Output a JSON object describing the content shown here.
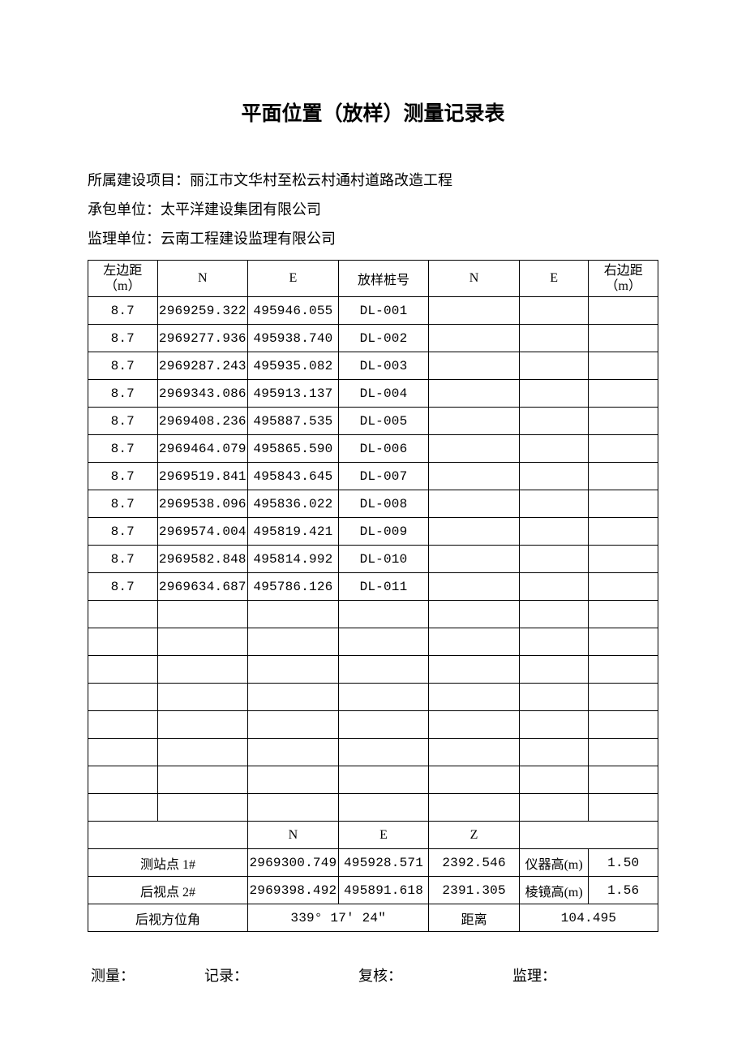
{
  "title": "平面位置（放样）测量记录表",
  "meta": {
    "project_label": "所属建设项目：",
    "project_value": "丽江市文华村至松云村通村道路改造工程",
    "contractor_label": "承包单位：",
    "contractor_value": "太平洋建设集团有限公司",
    "supervisor_label": "监理单位：",
    "supervisor_value": "云南工程建设监理有限公司"
  },
  "columns": {
    "left_dist_l1": "左边距",
    "left_dist_l2": "（m）",
    "n": "N",
    "e": "E",
    "stake": "放样桩号",
    "z": "Z",
    "right_dist_l1": "右边距",
    "right_dist_l2": "（m）"
  },
  "rows": [
    {
      "left": "8.7",
      "n": "2969259.322",
      "e": "495946.055",
      "stake": "DL-001",
      "n2": "",
      "e2": "",
      "right": ""
    },
    {
      "left": "8.7",
      "n": "2969277.936",
      "e": "495938.740",
      "stake": "DL-002",
      "n2": "",
      "e2": "",
      "right": ""
    },
    {
      "left": "8.7",
      "n": "2969287.243",
      "e": "495935.082",
      "stake": "DL-003",
      "n2": "",
      "e2": "",
      "right": ""
    },
    {
      "left": "8.7",
      "n": "2969343.086",
      "e": "495913.137",
      "stake": "DL-004",
      "n2": "",
      "e2": "",
      "right": ""
    },
    {
      "left": "8.7",
      "n": "2969408.236",
      "e": "495887.535",
      "stake": "DL-005",
      "n2": "",
      "e2": "",
      "right": ""
    },
    {
      "left": "8.7",
      "n": "2969464.079",
      "e": "495865.590",
      "stake": "DL-006",
      "n2": "",
      "e2": "",
      "right": ""
    },
    {
      "left": "8.7",
      "n": "2969519.841",
      "e": "495843.645",
      "stake": "DL-007",
      "n2": "",
      "e2": "",
      "right": ""
    },
    {
      "left": "8.7",
      "n": "2969538.096",
      "e": "495836.022",
      "stake": "DL-008",
      "n2": "",
      "e2": "",
      "right": ""
    },
    {
      "left": "8.7",
      "n": "2969574.004",
      "e": "495819.421",
      "stake": "DL-009",
      "n2": "",
      "e2": "",
      "right": ""
    },
    {
      "left": "8.7",
      "n": "2969582.848",
      "e": "495814.992",
      "stake": "DL-010",
      "n2": "",
      "e2": "",
      "right": ""
    },
    {
      "left": "8.7",
      "n": "2969634.687",
      "e": "495786.126",
      "stake": "DL-011",
      "n2": "",
      "e2": "",
      "right": ""
    },
    {
      "left": "",
      "n": "",
      "e": "",
      "stake": "",
      "n2": "",
      "e2": "",
      "right": ""
    },
    {
      "left": "",
      "n": "",
      "e": "",
      "stake": "",
      "n2": "",
      "e2": "",
      "right": ""
    },
    {
      "left": "",
      "n": "",
      "e": "",
      "stake": "",
      "n2": "",
      "e2": "",
      "right": ""
    },
    {
      "left": "",
      "n": "",
      "e": "",
      "stake": "",
      "n2": "",
      "e2": "",
      "right": ""
    },
    {
      "left": "",
      "n": "",
      "e": "",
      "stake": "",
      "n2": "",
      "e2": "",
      "right": ""
    },
    {
      "left": "",
      "n": "",
      "e": "",
      "stake": "",
      "n2": "",
      "e2": "",
      "right": ""
    },
    {
      "left": "",
      "n": "",
      "e": "",
      "stake": "",
      "n2": "",
      "e2": "",
      "right": ""
    },
    {
      "left": "",
      "n": "",
      "e": "",
      "stake": "",
      "n2": "",
      "e2": "",
      "right": ""
    }
  ],
  "stations": {
    "station1_label": "测站点 1#",
    "station1_n": "2969300.749",
    "station1_e": "495928.571",
    "station1_z": "2392.546",
    "instrument_h_label": "仪器高(m)",
    "instrument_h_value": "1.50",
    "backsight2_label": "后视点 2#",
    "backsight2_n": "2969398.492",
    "backsight2_e": "495891.618",
    "backsight2_z": "2391.305",
    "prism_h_label": "棱镜高(m)",
    "prism_h_value": "1.56",
    "bs_azimuth_label": "后视方位角",
    "bs_azimuth_value": "339° 17′ 24″",
    "distance_label": "距离",
    "distance_value": "104.495"
  },
  "footer": {
    "measure": "测量：",
    "record": "记录：",
    "review": "复核：",
    "supervise": "监理："
  }
}
